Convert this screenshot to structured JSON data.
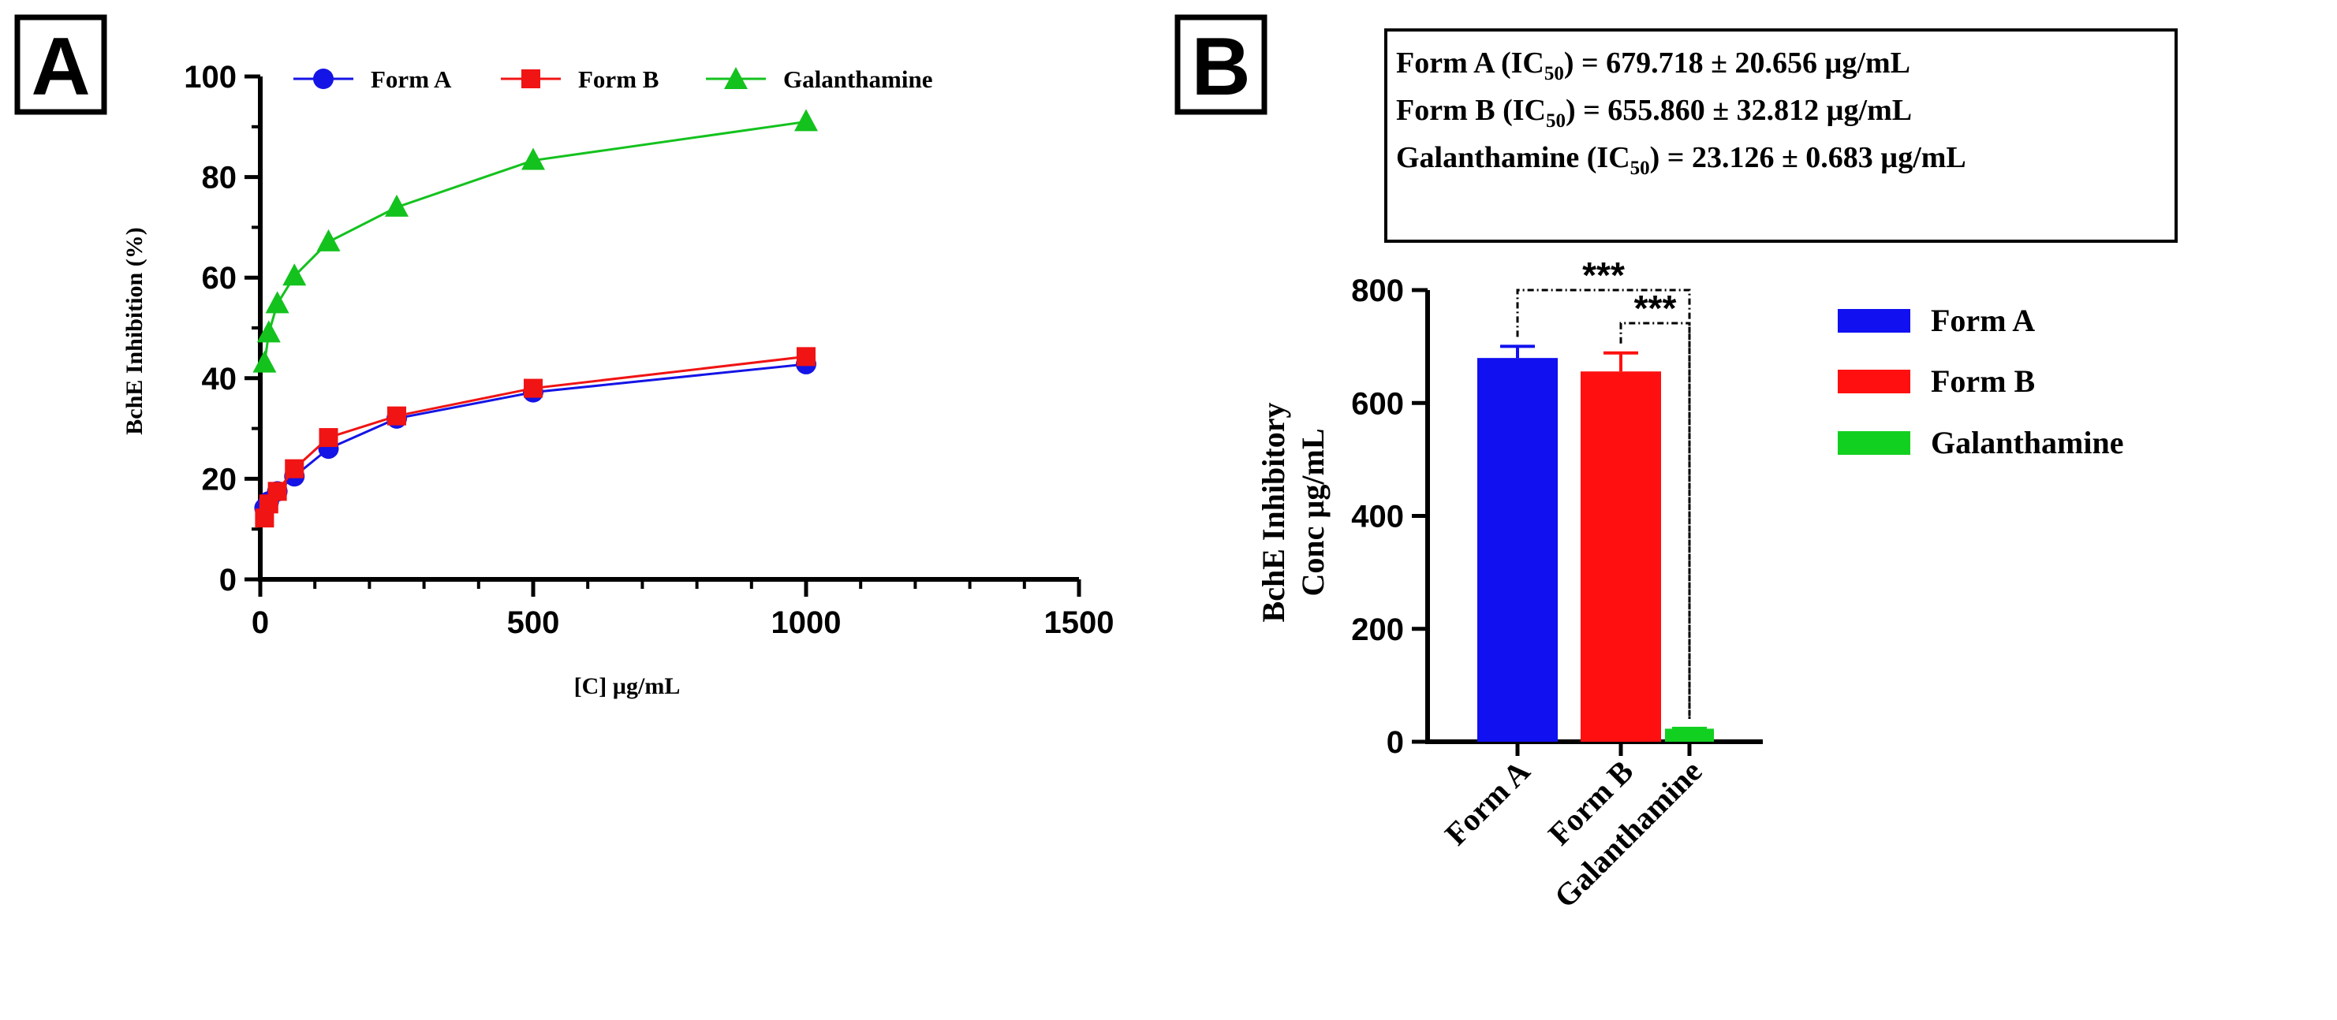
{
  "panels": {
    "a_label": "A",
    "b_label": "B"
  },
  "chart_data": [
    {
      "panel": "A",
      "type": "line",
      "title": "",
      "xlabel": "[C] µg/mL",
      "ylabel": "BchE Inhibition (%)",
      "xlim": [
        0,
        1500
      ],
      "ylim": [
        0,
        100
      ],
      "xticks": [
        0,
        500,
        1000,
        1500
      ],
      "yticks": [
        0,
        20,
        40,
        60,
        80,
        100
      ],
      "x": [
        7.81,
        15.62,
        31.25,
        62.5,
        125,
        250,
        500,
        1000
      ],
      "series": [
        {
          "name": "Form A",
          "marker": "circle",
          "color": "#1414e6",
          "values": [
            14.2,
            15.5,
            17.5,
            20.5,
            26.0,
            32.0,
            37.2,
            42.8
          ]
        },
        {
          "name": "Form B",
          "marker": "square",
          "color": "#f01414",
          "values": [
            12.2,
            15.0,
            17.5,
            22.0,
            28.2,
            32.5,
            38.0,
            44.3
          ]
        },
        {
          "name": "Galanthamine",
          "marker": "triangle",
          "color": "#14c21e",
          "values": [
            43.0,
            49.0,
            54.8,
            60.3,
            67.1,
            74.0,
            83.3,
            91.0
          ]
        }
      ],
      "legend_position": "top"
    },
    {
      "panel": "B",
      "type": "bar",
      "title": "",
      "xlabel": "",
      "ylabel_line1": "BchE Inhibitory",
      "ylabel_line2": "Conc µg/mL",
      "ylim": [
        0,
        800
      ],
      "yticks": [
        0,
        200,
        400,
        600,
        800
      ],
      "categories": [
        "Form A",
        "Form B",
        "Galanthamine"
      ],
      "values": [
        679.718,
        655.86,
        23.126
      ],
      "errors": [
        20.656,
        32.812,
        0.683
      ],
      "colors": [
        "#1010f0",
        "#ff0f0f",
        "#12d020"
      ],
      "significance": [
        {
          "from": "Form A",
          "to": "Galanthamine",
          "label": "***"
        },
        {
          "from": "Form B",
          "to": "Galanthamine",
          "label": "***"
        }
      ],
      "legend_position": "right"
    }
  ],
  "ic50_box": {
    "lines": [
      {
        "name": "Form A",
        "value_text": " = 679.718 ± 20.656 µg/mL"
      },
      {
        "name": "Form B",
        "value_text": " = 655.860 ± 32.812 µg/mL"
      },
      {
        "name": "Galanthamine",
        "value_text": " = 23.126 ± 0.683 µg/mL"
      }
    ],
    "ic_prefix": "(IC",
    "ic_sub": "50",
    "ic_suffix": ")"
  }
}
